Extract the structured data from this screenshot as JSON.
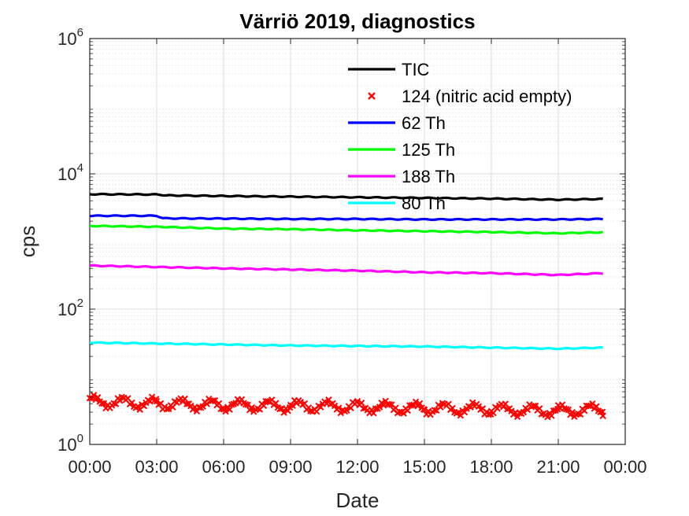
{
  "chart_data": {
    "type": "line",
    "title": "Värriö 2019, diagnostics",
    "xlabel": "Date",
    "ylabel": "cps",
    "y_scale": "log",
    "ylim": [
      1,
      1000000
    ],
    "xlim": [
      "00:00",
      "24:00"
    ],
    "x_unit": "hours",
    "x_ticks": [
      {
        "value": 0,
        "label": "00:00"
      },
      {
        "value": 3,
        "label": "03:00"
      },
      {
        "value": 6,
        "label": "06:00"
      },
      {
        "value": 9,
        "label": "09:00"
      },
      {
        "value": 12,
        "label": "12:00"
      },
      {
        "value": 15,
        "label": "15:00"
      },
      {
        "value": 18,
        "label": "18:00"
      },
      {
        "value": 21,
        "label": "21:00"
      },
      {
        "value": 24,
        "label": "00:00"
      }
    ],
    "y_ticks": [
      {
        "value": 1,
        "base": "10",
        "exp": "0"
      },
      {
        "value": 100,
        "base": "10",
        "exp": "2"
      },
      {
        "value": 10000,
        "base": "10",
        "exp": "4"
      },
      {
        "value": 1000000,
        "base": "10",
        "exp": "6"
      }
    ],
    "grid": true,
    "minor_grid": true,
    "legend_position": "top-right",
    "series": [
      {
        "name": "TIC",
        "color": "#000000",
        "style": "line",
        "x": [
          0,
          3,
          3.5,
          6,
          9,
          12,
          15,
          18,
          21,
          23
        ],
        "y": [
          5000,
          4950,
          4800,
          4700,
          4600,
          4500,
          4400,
          4300,
          4150,
          4250
        ]
      },
      {
        "name": "124 (nitric acid empty)",
        "color": "#ff0000",
        "style": "marker",
        "x": [
          0,
          3,
          6,
          9,
          12,
          15,
          18,
          21,
          23
        ],
        "y": [
          4.3,
          4.0,
          3.8,
          3.7,
          3.6,
          3.4,
          3.3,
          3.1,
          3.3
        ]
      },
      {
        "name": "62 Th",
        "color": "#0000ff",
        "style": "line",
        "x": [
          0,
          3,
          3.3,
          6,
          9,
          12,
          15,
          18,
          21,
          23
        ],
        "y": [
          2400,
          2400,
          2200,
          2180,
          2150,
          2150,
          2120,
          2120,
          2120,
          2150
        ]
      },
      {
        "name": "125 Th",
        "color": "#00ff00",
        "style": "line",
        "x": [
          0,
          3,
          6,
          9,
          12,
          15,
          18,
          21,
          23
        ],
        "y": [
          1700,
          1650,
          1550,
          1520,
          1460,
          1420,
          1380,
          1320,
          1370
        ]
      },
      {
        "name": "188 Th",
        "color": "#ff00ff",
        "style": "line",
        "x": [
          0,
          3,
          6,
          9,
          12,
          15,
          18,
          21,
          23
        ],
        "y": [
          440,
          420,
          400,
          385,
          370,
          350,
          340,
          320,
          340
        ]
      },
      {
        "name": "80 Th",
        "color": "#00ffff",
        "style": "line",
        "x": [
          0,
          3,
          6,
          9,
          12,
          15,
          18,
          21,
          23
        ],
        "y": [
          32,
          31,
          30,
          29,
          28.5,
          28,
          27,
          26,
          27
        ]
      }
    ]
  }
}
